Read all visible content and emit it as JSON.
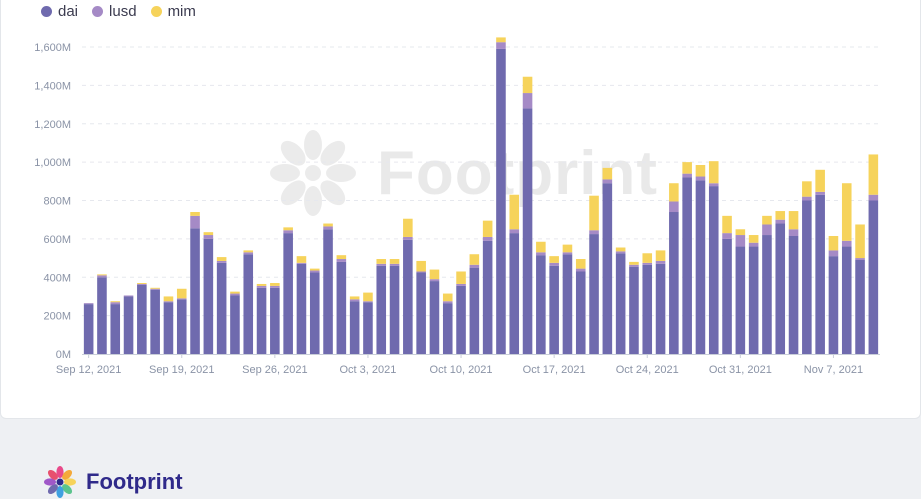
{
  "brand": {
    "name": "Footprint"
  },
  "chart_data": {
    "type": "bar",
    "stacked": true,
    "x_tick_labels": [
      "Sep 12, 2021",
      "Sep 19, 2021",
      "Sep 26, 2021",
      "Oct 3, 2021",
      "Oct 10, 2021",
      "Oct 17, 2021",
      "Oct 24, 2021",
      "Oct 31, 2021",
      "Nov 7, 2021"
    ],
    "x_tick_index": [
      0,
      7,
      14,
      21,
      28,
      35,
      42,
      49,
      56
    ],
    "y_ticks": [
      "0M",
      "200M",
      "400M",
      "600M",
      "800M",
      "1,000M",
      "1,200M",
      "1,400M",
      "1,600M"
    ],
    "ylim": [
      0,
      1700
    ],
    "grid": true,
    "legend_position": "top-left",
    "series": [
      {
        "name": "dai",
        "color": "#6f6aae",
        "values": [
          260,
          400,
          260,
          300,
          360,
          335,
          270,
          285,
          655,
          600,
          475,
          305,
          520,
          345,
          345,
          630,
          470,
          425,
          650,
          480,
          275,
          270,
          460,
          460,
          595,
          425,
          380,
          265,
          355,
          450,
          590,
          1590,
          630,
          1280,
          515,
          460,
          520,
          430,
          625,
          890,
          525,
          455,
          465,
          470,
          740,
          920,
          905,
          875,
          600,
          560,
          560,
          620,
          680,
          615,
          800,
          830,
          510,
          560,
          490,
          800
        ]
      },
      {
        "name": "lusd",
        "color": "#a58ac6",
        "values": [
          5,
          10,
          10,
          5,
          5,
          5,
          5,
          5,
          65,
          20,
          10,
          10,
          10,
          10,
          10,
          15,
          5,
          10,
          15,
          15,
          10,
          5,
          10,
          10,
          15,
          5,
          10,
          10,
          10,
          15,
          20,
          35,
          20,
          80,
          15,
          15,
          10,
          15,
          20,
          20,
          10,
          10,
          10,
          15,
          55,
          20,
          20,
          15,
          30,
          60,
          20,
          55,
          20,
          35,
          20,
          15,
          30,
          30,
          10,
          30
        ]
      },
      {
        "name": "mim",
        "color": "#f6d35b",
        "values": [
          0,
          5,
          5,
          0,
          5,
          5,
          25,
          50,
          20,
          15,
          20,
          10,
          10,
          10,
          15,
          15,
          35,
          10,
          15,
          20,
          15,
          45,
          25,
          25,
          95,
          55,
          50,
          40,
          65,
          55,
          85,
          25,
          180,
          85,
          55,
          35,
          40,
          50,
          180,
          60,
          20,
          15,
          50,
          55,
          95,
          60,
          60,
          115,
          90,
          30,
          40,
          45,
          45,
          95,
          80,
          115,
          75,
          300,
          175,
          210
        ]
      }
    ]
  }
}
